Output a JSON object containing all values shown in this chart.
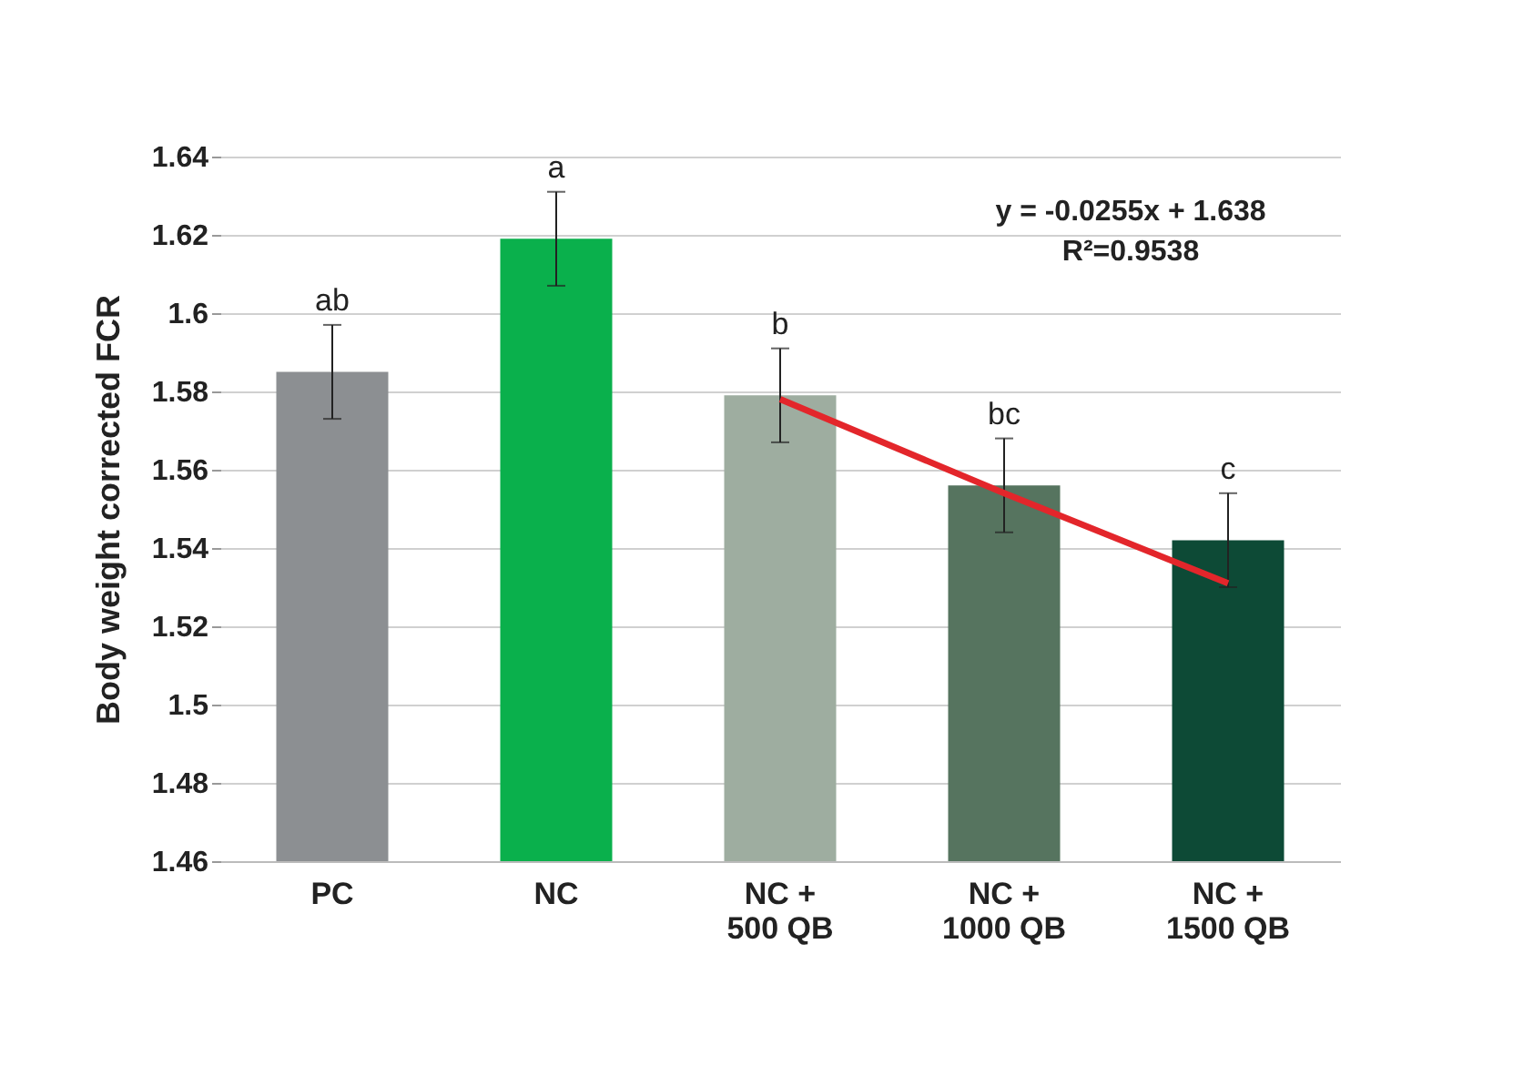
{
  "chart_data": {
    "type": "bar",
    "ylabel": "Body weight corrected FCR",
    "categories": [
      "PC",
      "NC",
      "NC + 500 QB",
      "NC + 1000 QB",
      "NC + 1500 QB"
    ],
    "series": [
      {
        "values": [
          1.585,
          1.619,
          1.579,
          1.556,
          1.542
        ],
        "colors": [
          "#8c8f92",
          "#0ab04c",
          "#9eada0",
          "#56745f",
          "#0d4a36"
        ],
        "errors": [
          0.012,
          0.012,
          0.012,
          0.012,
          0.012
        ]
      },
      {
        "type": "line",
        "color": "#e3262b",
        "values": [
          null,
          null,
          1.578,
          1.554,
          1.531
        ]
      }
    ],
    "ylim": [
      1.46,
      1.64
    ],
    "yticks": [
      1.46,
      1.48,
      1.5,
      1.52,
      1.54,
      1.56,
      1.58,
      1.6,
      1.62,
      1.64
    ],
    "grid": "y",
    "annotations": [
      {
        "text": "ab",
        "x": "PC",
        "y": 1.597
      },
      {
        "text": "a",
        "x": "NC",
        "y": 1.631
      },
      {
        "text": "b",
        "x": "NC + 500 QB",
        "y": 1.591
      },
      {
        "text": "bc",
        "x": "NC + 1000 QB",
        "y": 1.568
      },
      {
        "text": "c",
        "x": "NC + 1500 QB",
        "y": 1.554
      },
      "y = -0.0255x + 1.638",
      "R²=0.9538"
    ]
  }
}
